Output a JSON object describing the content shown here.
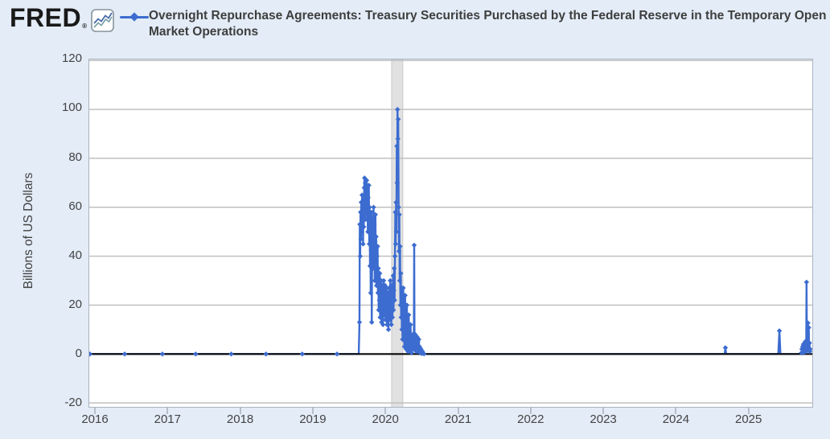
{
  "header": {
    "logo_text": "FRED",
    "logo_registered": "®",
    "series_title": "Overnight Repurchase Agreements: Treasury Securities Purchased by the Federal Reserve in the Temporary Open Market Operations"
  },
  "colors": {
    "page_background": "#e3ecf7",
    "plot_background": "#ffffff",
    "series_blue": "#3c6cd0",
    "zero_line": "#0a0a0a",
    "gridline": "#c0c0c0",
    "recession_band": "#e1e1e1",
    "recession_band_edge": "#c9c9c9",
    "label_text": "#444444"
  },
  "chart_data": {
    "type": "line",
    "title": "Overnight Repurchase Agreements: Treasury Securities Purchased by the Federal Reserve in the Temporary Open Market Operations",
    "xlabel": "",
    "ylabel": "Billions of US Dollars",
    "x_ticks": [
      2016,
      2017,
      2018,
      2019,
      2020,
      2021,
      2022,
      2023,
      2024,
      2025
    ],
    "y_ticks": [
      120,
      100,
      80,
      60,
      40,
      20,
      0,
      -20
    ],
    "xlim": [
      2015.91,
      2025.86
    ],
    "ylim": [
      -21.6,
      120.4
    ],
    "grid": "horizontal",
    "legend_position": "top-left",
    "marker": "diamond",
    "recession_band": {
      "start": 2020.084,
      "end": 2020.238
    },
    "series": [
      {
        "name": "Overnight Repurchase Agreements: Treasury Securities Purchased by the Federal Reserve in the Temporary Open Market Operations",
        "color": "#3c6cd0",
        "points": [
          [
            2015.92,
            0
          ],
          [
            2016.4,
            0
          ],
          [
            2016.92,
            0
          ],
          [
            2017.38,
            0
          ],
          [
            2017.87,
            0
          ],
          [
            2018.35,
            0
          ],
          [
            2018.85,
            0
          ],
          [
            2019.33,
            0
          ],
          [
            2019.63,
            0,
            0
          ],
          [
            2019.64,
            13
          ],
          [
            2019.645,
            53
          ],
          [
            2019.65,
            40
          ],
          [
            2019.655,
            58
          ],
          [
            2019.66,
            47
          ],
          [
            2019.665,
            62
          ],
          [
            2019.67,
            50
          ],
          [
            2019.675,
            65
          ],
          [
            2019.68,
            55
          ],
          [
            2019.685,
            60
          ],
          [
            2019.69,
            45
          ],
          [
            2019.695,
            63
          ],
          [
            2019.7,
            52
          ],
          [
            2019.705,
            68
          ],
          [
            2019.71,
            72
          ],
          [
            2019.715,
            60
          ],
          [
            2019.72,
            70
          ],
          [
            2019.725,
            55
          ],
          [
            2019.73,
            67
          ],
          [
            2019.735,
            58
          ],
          [
            2019.74,
            71
          ],
          [
            2019.745,
            62
          ],
          [
            2019.75,
            68
          ],
          [
            2019.755,
            50
          ],
          [
            2019.76,
            64
          ],
          [
            2019.765,
            57
          ],
          [
            2019.77,
            69
          ],
          [
            2019.775,
            45
          ],
          [
            2019.78,
            60
          ],
          [
            2019.785,
            36
          ],
          [
            2019.79,
            55
          ],
          [
            2019.795,
            25
          ],
          [
            2019.8,
            47
          ],
          [
            2019.805,
            58
          ],
          [
            2019.81,
            13
          ],
          [
            2019.815,
            42
          ],
          [
            2019.82,
            55
          ],
          [
            2019.825,
            35
          ],
          [
            2019.83,
            50
          ],
          [
            2019.835,
            60
          ],
          [
            2019.84,
            42
          ],
          [
            2019.845,
            53
          ],
          [
            2019.85,
            30
          ],
          [
            2019.855,
            46
          ],
          [
            2019.86,
            57
          ],
          [
            2019.865,
            38
          ],
          [
            2019.87,
            48
          ],
          [
            2019.875,
            28
          ],
          [
            2019.88,
            40
          ],
          [
            2019.885,
            30
          ],
          [
            2019.89,
            44
          ],
          [
            2019.895,
            25
          ],
          [
            2019.9,
            35
          ],
          [
            2019.905,
            18
          ],
          [
            2019.91,
            30
          ],
          [
            2019.915,
            22
          ],
          [
            2019.92,
            33
          ],
          [
            2019.925,
            15
          ],
          [
            2019.93,
            27
          ],
          [
            2019.935,
            20
          ],
          [
            2019.94,
            30
          ],
          [
            2019.945,
            13
          ],
          [
            2019.95,
            24
          ],
          [
            2019.955,
            17
          ],
          [
            2019.96,
            28
          ],
          [
            2019.965,
            12
          ],
          [
            2019.97,
            22
          ],
          [
            2019.975,
            30
          ],
          [
            2019.98,
            16
          ],
          [
            2019.985,
            26
          ],
          [
            2019.99,
            20
          ],
          [
            2019.995,
            28
          ],
          [
            2020.0,
            14
          ],
          [
            2020.005,
            24
          ],
          [
            2020.01,
            18
          ],
          [
            2020.015,
            27
          ],
          [
            2020.02,
            12
          ],
          [
            2020.025,
            21
          ],
          [
            2020.03,
            15
          ],
          [
            2020.035,
            25
          ],
          [
            2020.04,
            10
          ],
          [
            2020.045,
            19
          ],
          [
            2020.05,
            27
          ],
          [
            2020.055,
            14
          ],
          [
            2020.06,
            22
          ],
          [
            2020.065,
            30
          ],
          [
            2020.07,
            17
          ],
          [
            2020.075,
            25
          ],
          [
            2020.08,
            12
          ],
          [
            2020.085,
            20
          ],
          [
            2020.09,
            28
          ],
          [
            2020.095,
            15
          ],
          [
            2020.1,
            23
          ],
          [
            2020.105,
            32
          ],
          [
            2020.11,
            18
          ],
          [
            2020.115,
            26
          ],
          [
            2020.12,
            35
          ],
          [
            2020.125,
            22
          ],
          [
            2020.13,
            40
          ],
          [
            2020.135,
            58
          ],
          [
            2020.14,
            45
          ],
          [
            2020.145,
            62
          ],
          [
            2020.15,
            50
          ],
          [
            2020.155,
            85
          ],
          [
            2020.16,
            70
          ],
          [
            2020.165,
            100
          ],
          [
            2020.17,
            88
          ],
          [
            2020.175,
            96
          ],
          [
            2020.18,
            60
          ],
          [
            2020.185,
            42
          ],
          [
            2020.19,
            57
          ],
          [
            2020.195,
            30
          ],
          [
            2020.2,
            44
          ],
          [
            2020.205,
            20
          ],
          [
            2020.21,
            33
          ],
          [
            2020.215,
            15
          ],
          [
            2020.22,
            27
          ],
          [
            2020.225,
            10
          ],
          [
            2020.23,
            22
          ],
          [
            2020.235,
            6
          ],
          [
            2020.24,
            18
          ],
          [
            2020.245,
            27
          ],
          [
            2020.25,
            8
          ],
          [
            2020.255,
            16
          ],
          [
            2020.26,
            3
          ],
          [
            2020.265,
            12
          ],
          [
            2020.27,
            24
          ],
          [
            2020.275,
            5
          ],
          [
            2020.28,
            14
          ],
          [
            2020.285,
            2
          ],
          [
            2020.29,
            10
          ],
          [
            2020.295,
            20
          ],
          [
            2020.3,
            4
          ],
          [
            2020.305,
            13
          ],
          [
            2020.31,
            1
          ],
          [
            2020.315,
            8
          ],
          [
            2020.32,
            16
          ],
          [
            2020.325,
            3
          ],
          [
            2020.33,
            9
          ],
          [
            2020.335,
            1
          ],
          [
            2020.34,
            6
          ],
          [
            2020.345,
            12
          ],
          [
            2020.35,
            2
          ],
          [
            2020.355,
            7
          ],
          [
            2020.36,
            0.5
          ],
          [
            2020.365,
            5
          ],
          [
            2020.37,
            2
          ],
          [
            2020.375,
            8
          ],
          [
            2020.38,
            3
          ],
          [
            2020.385,
            6
          ],
          [
            2020.39,
            2
          ],
          [
            2020.395,
            44.5
          ],
          [
            2020.4,
            6
          ],
          [
            2020.405,
            2
          ],
          [
            2020.41,
            8
          ],
          [
            2020.415,
            2
          ],
          [
            2020.42,
            6
          ],
          [
            2020.425,
            1
          ],
          [
            2020.43,
            4
          ],
          [
            2020.435,
            7
          ],
          [
            2020.44,
            2
          ],
          [
            2020.445,
            5
          ],
          [
            2020.45,
            1
          ],
          [
            2020.455,
            3
          ],
          [
            2020.46,
            6
          ],
          [
            2020.465,
            1.5
          ],
          [
            2020.47,
            3
          ],
          [
            2020.48,
            0.5
          ],
          [
            2020.49,
            2
          ],
          [
            2020.5,
            0.2
          ],
          [
            2020.51,
            1
          ],
          [
            2020.53,
            0.05
          ],
          [
            2020.6,
            0,
            0
          ],
          [
            2020.9,
            0,
            0
          ],
          [
            2021.3,
            0,
            0
          ],
          [
            2021.8,
            0,
            0
          ],
          [
            2022.3,
            0,
            0
          ],
          [
            2022.8,
            0,
            0
          ],
          [
            2023.3,
            0,
            0
          ],
          [
            2023.8,
            0,
            0
          ],
          [
            2024.2,
            0,
            0
          ],
          [
            2024.55,
            0,
            0
          ],
          [
            2024.68,
            0,
            0
          ],
          [
            2024.69,
            2.6
          ],
          [
            2024.7,
            0,
            0
          ],
          [
            2025.0,
            0,
            0
          ],
          [
            2025.3,
            0,
            0
          ],
          [
            2025.42,
            0,
            0
          ],
          [
            2025.435,
            9.5
          ],
          [
            2025.45,
            0,
            0
          ],
          [
            2025.55,
            0,
            0
          ],
          [
            2025.7,
            0,
            0
          ],
          [
            2025.74,
            0.5
          ],
          [
            2025.745,
            2
          ],
          [
            2025.75,
            0.5
          ],
          [
            2025.755,
            3
          ],
          [
            2025.76,
            1
          ],
          [
            2025.765,
            4
          ],
          [
            2025.77,
            1.5
          ],
          [
            2025.775,
            3
          ],
          [
            2025.78,
            0.8
          ],
          [
            2025.785,
            2.5
          ],
          [
            2025.79,
            5
          ],
          [
            2025.795,
            1.5
          ],
          [
            2025.8,
            4
          ],
          [
            2025.805,
            1
          ],
          [
            2025.81,
            29.4
          ],
          [
            2025.815,
            3
          ],
          [
            2025.82,
            5
          ],
          [
            2025.825,
            2
          ],
          [
            2025.83,
            12.7
          ],
          [
            2025.835,
            4
          ],
          [
            2025.84,
            10.8
          ],
          [
            2025.845,
            2
          ],
          [
            2025.85,
            4.5
          ],
          [
            2025.855,
            1
          ],
          [
            2025.86,
            2
          ]
        ]
      }
    ]
  }
}
